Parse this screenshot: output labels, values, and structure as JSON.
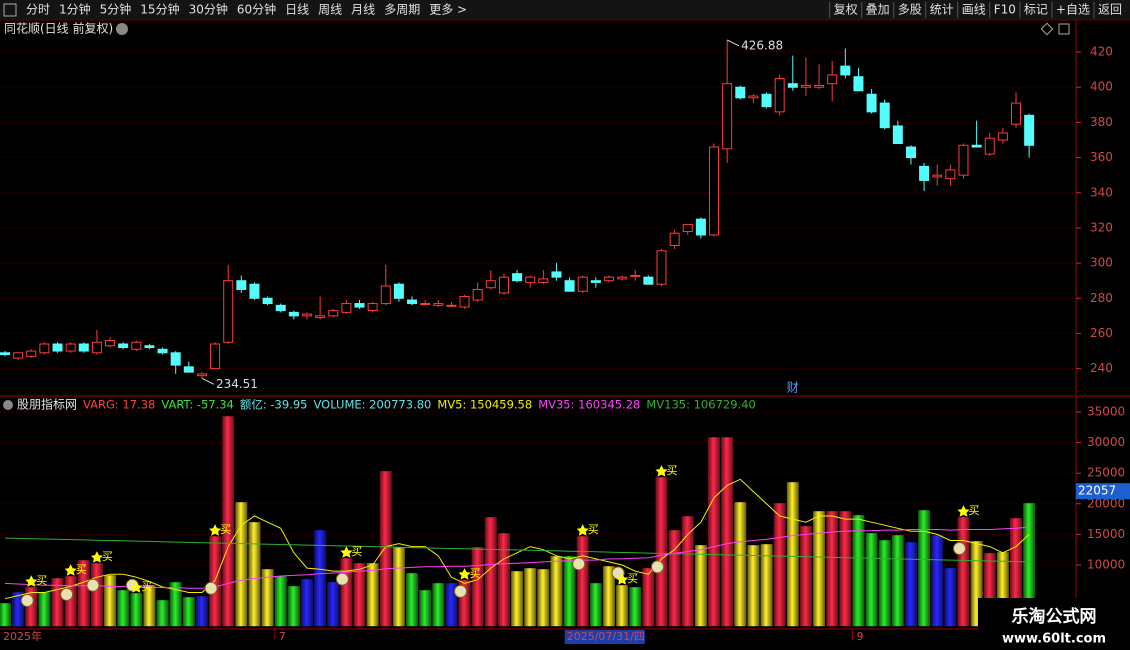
{
  "toolbar": {
    "left": [
      "分时",
      "1分钟",
      "5分钟",
      "15分钟",
      "30分钟",
      "60分钟",
      "日线",
      "周线",
      "月线",
      "多周期",
      "更多 >"
    ],
    "right": [
      "复权",
      "叠加",
      "多股",
      "统计",
      "画线",
      "F10",
      "标记",
      "+自选",
      "返回"
    ]
  },
  "chart_data": [
    {
      "type": "candlestick",
      "title": "同花顺(日线 前复权)",
      "categories": [
        "2025年",
        null,
        null,
        null,
        null,
        null,
        null,
        null,
        null,
        null,
        null,
        null,
        null,
        null,
        null,
        null,
        null,
        null,
        null,
        null,
        null,
        "7",
        null,
        null,
        null,
        null,
        null,
        null,
        null,
        null,
        null,
        null,
        null,
        null,
        null,
        null,
        null,
        null,
        null,
        null,
        null,
        null,
        null,
        null,
        "2025/07/31/四",
        null,
        null,
        null,
        null,
        null,
        null,
        null,
        null,
        null,
        null,
        null,
        null,
        null,
        null,
        null,
        null,
        null,
        null,
        null,
        null,
        "9",
        null,
        null,
        null,
        null,
        null,
        null,
        null,
        null,
        null,
        null,
        null,
        null,
        null
      ],
      "open": [
        249,
        246,
        247,
        249,
        254,
        250,
        254,
        249,
        253,
        254,
        251,
        253,
        251,
        249,
        241,
        236,
        240,
        255,
        290,
        288,
        280,
        276,
        272,
        270,
        269,
        270,
        272,
        277,
        273,
        277,
        288,
        279,
        277,
        276,
        276,
        275,
        279,
        286,
        283,
        294,
        289,
        289,
        295,
        290,
        284,
        290,
        290,
        291,
        293,
        292,
        288,
        310,
        318,
        325,
        316,
        365,
        400,
        394,
        396,
        386,
        402,
        400,
        400,
        402,
        412,
        406,
        396,
        391,
        378,
        366,
        355,
        349,
        348,
        350,
        367,
        362,
        370,
        379,
        384
      ],
      "high": [
        250,
        249,
        251,
        255,
        255,
        255,
        255,
        262,
        258,
        255,
        256,
        254,
        252,
        250,
        244,
        238,
        255,
        299,
        293,
        289,
        281,
        277,
        273,
        272,
        281,
        274,
        279,
        279,
        278,
        299,
        289,
        281,
        279,
        279,
        278,
        282,
        289,
        296,
        294,
        296,
        293,
        296,
        300,
        292,
        293,
        292,
        293,
        293,
        296,
        293,
        308,
        319,
        322,
        326,
        368,
        426.88,
        401,
        396,
        397,
        407,
        418,
        417,
        413,
        415,
        422,
        411,
        399,
        393,
        381,
        367,
        357,
        356,
        356,
        368,
        381,
        374,
        377,
        397,
        385
      ],
      "low": [
        247,
        245,
        246,
        248,
        249,
        249,
        249,
        248,
        252,
        251,
        250,
        251,
        248,
        237,
        238,
        234.51,
        240,
        254,
        283,
        279,
        276,
        272,
        268,
        268,
        268,
        269,
        271,
        274,
        272,
        276,
        278,
        276,
        276,
        275,
        275,
        274,
        278,
        285,
        282,
        289,
        286,
        288,
        290,
        284,
        283,
        286,
        289,
        290,
        290,
        288,
        287,
        308,
        316,
        314,
        315,
        357,
        393,
        391,
        388,
        384,
        398,
        395,
        399,
        392,
        405,
        398,
        385,
        376,
        368,
        356,
        341,
        344,
        344,
        348,
        366,
        361,
        368,
        377,
        360
      ],
      "close": [
        248,
        249,
        250,
        254,
        250,
        254,
        250,
        255,
        256,
        252,
        255,
        252,
        249,
        242,
        238,
        237,
        254,
        290,
        285,
        280,
        277,
        273,
        270,
        271,
        270,
        273,
        277,
        275,
        277,
        287,
        280,
        277,
        277,
        277,
        276,
        281,
        285,
        290,
        292,
        290,
        292,
        291,
        292,
        284,
        292,
        289,
        292,
        292,
        293,
        288,
        307,
        317,
        322,
        316,
        366,
        402,
        394,
        395,
        389,
        405,
        400,
        401,
        401,
        407,
        407,
        398,
        386,
        377,
        368,
        360,
        347,
        350,
        353,
        367,
        366,
        371,
        374,
        391,
        367
      ],
      "up_color": "#ff3a3a",
      "down_color": "#54fcfc",
      "ylim": [
        225,
        428
      ],
      "yticks": [
        240,
        260,
        280,
        300,
        320,
        340,
        360,
        380,
        400,
        420
      ],
      "marker_label": "财",
      "marker_index": 60
    },
    {
      "type": "bar",
      "title": "股朋指标网",
      "legend": [
        {
          "text": "VARG: 17.38",
          "color": "#ff4040"
        },
        {
          "text": "VART: -57.34",
          "color": "#40e040"
        },
        {
          "text": "额亿: -39.95",
          "color": "#60e0e0"
        },
        {
          "text": "VOLUME: 200773.80",
          "color": "#60e0e0"
        },
        {
          "text": "MV5: 150459.58",
          "color": "#f0f000"
        },
        {
          "text": "MV35: 160345.28",
          "color": "#ff40ff"
        },
        {
          "text": "MV135: 106729.40",
          "color": "#30b030"
        }
      ],
      "values": [
        3760,
        5560,
        6370,
        5560,
        7840,
        8170,
        10780,
        10290,
        8330,
        5880,
        5390,
        6700,
        4250,
        7190,
        4740,
        4900,
        14700,
        34300,
        20260,
        17000,
        9310,
        8170,
        6540,
        7680,
        15690,
        7190,
        11110,
        10290,
        10290,
        25330,
        12910,
        8660,
        5880,
        7030,
        7030,
        7520,
        12910,
        17810,
        15200,
        8990,
        9480,
        9310,
        11440,
        11440,
        14700,
        7030,
        9800,
        6700,
        6370,
        9480,
        24350,
        15690,
        17970,
        13240,
        30880,
        30880,
        20260,
        13240,
        13400,
        20100,
        23530,
        16340,
        18790,
        18790,
        18790,
        18140,
        15200,
        14050,
        14870,
        13730,
        18950,
        14870,
        9480,
        17810,
        13890,
        11930,
        12090,
        17650,
        20100
      ],
      "colors": [
        "#20c020",
        "#2020e0",
        "#e0203a",
        "#20c020",
        "#e0203a",
        "#e0203a",
        "#e0203a",
        "#e0203a",
        "#d4c020",
        "#20c020",
        "#20c020",
        "#d4c020",
        "#20c020",
        "#20c020",
        "#20c020",
        "#2020e0",
        "#e0203a",
        "#e0203a",
        "#d4c020",
        "#d4c020",
        "#d4c020",
        "#20c020",
        "#20c020",
        "#2020e0",
        "#2020e0",
        "#2020e0",
        "#e0203a",
        "#e0203a",
        "#d4c020",
        "#e0203a",
        "#d4c020",
        "#20c020",
        "#20c020",
        "#20c020",
        "#2020e0",
        "#e0203a",
        "#e0203a",
        "#e0203a",
        "#e0203a",
        "#d4c020",
        "#d4c020",
        "#d4c020",
        "#d4c020",
        "#20c020",
        "#e0203a",
        "#20c020",
        "#d4c020",
        "#d4c020",
        "#20c020",
        "#e0203a",
        "#e0203a",
        "#e0203a",
        "#e0203a",
        "#d4c020",
        "#e0203a",
        "#e0203a",
        "#d4c020",
        "#d4c020",
        "#d4c020",
        "#e0203a",
        "#d4c020",
        "#e0203a",
        "#d4c020",
        "#e0203a",
        "#e0203a",
        "#20c020",
        "#20c020",
        "#20c020",
        "#20c020",
        "#2020e0",
        "#20c020",
        "#2020e0",
        "#2020e0",
        "#e0203a",
        "#d4c020",
        "#e0203a",
        "#d4c020",
        "#e0203a",
        "#20c020"
      ],
      "lines": [
        {
          "color": "#f0f000",
          "values": [
            4500,
            5000,
            5500,
            5500,
            6000,
            6500,
            7200,
            8000,
            8500,
            8500,
            8000,
            7300,
            6400,
            6000,
            5500,
            5500,
            7500,
            13000,
            16500,
            18000,
            17000,
            16000,
            12000,
            9500,
            9300,
            9000,
            9000,
            9300,
            10000,
            13000,
            13500,
            13000,
            13000,
            11500,
            8000,
            7000,
            7600,
            9500,
            11000,
            12000,
            13000,
            12500,
            11500,
            11000,
            11500,
            11000,
            10500,
            10000,
            9000,
            8500,
            11000,
            12500,
            15000,
            17000,
            21000,
            23000,
            24000,
            22000,
            20000,
            18000,
            17500,
            17000,
            18000,
            18000,
            17500,
            17500,
            17000,
            16500,
            16000,
            15500,
            15500,
            15000,
            14000,
            14000,
            13500,
            13000,
            12000,
            13000,
            15000
          ]
        },
        {
          "color": "#ff40ff",
          "values": [
            7000,
            6900,
            6800,
            6700,
            6700,
            6600,
            6600,
            6600,
            6500,
            6500,
            6400,
            6400,
            6300,
            6300,
            6200,
            6200,
            6400,
            7000,
            7500,
            7800,
            8000,
            8200,
            8300,
            8400,
            8600,
            8700,
            8800,
            9000,
            9100,
            9400,
            9500,
            9600,
            9700,
            9700,
            9800,
            9800,
            9900,
            10100,
            10200,
            10300,
            10400,
            10500,
            10600,
            10700,
            10800,
            10800,
            11000,
            11000,
            11100,
            11200,
            11600,
            11900,
            12200,
            12500,
            13000,
            13500,
            13800,
            14000,
            14200,
            14500,
            14800,
            15000,
            15200,
            15400,
            15500,
            15600,
            15600,
            15700,
            15700,
            15800,
            15800,
            15800,
            15700,
            15800,
            15800,
            15800,
            15900,
            16000,
            16200
          ]
        },
        {
          "color": "#30b030",
          "values": [
            14400,
            14350,
            14300,
            14250,
            14200,
            14150,
            14100,
            14050,
            14000,
            13950,
            13900,
            13850,
            13800,
            13750,
            13700,
            13650,
            13600,
            13550,
            13500,
            13450,
            13400,
            13350,
            13300,
            13250,
            13200,
            13150,
            13100,
            13050,
            13000,
            12950,
            12900,
            12850,
            12800,
            12750,
            12700,
            12650,
            12600,
            12550,
            12500,
            12450,
            12400,
            12350,
            12300,
            12250,
            12200,
            12150,
            12100,
            12050,
            12000,
            11950,
            11900,
            11850,
            11800,
            11750,
            11700,
            11650,
            11600,
            11550,
            11500,
            11450,
            11400,
            11350,
            11300,
            11250,
            11200,
            11150,
            11100,
            11050,
            11000,
            10950,
            10900,
            10850,
            10800,
            10750,
            10700,
            10650,
            10600,
            10550,
            10500
          ]
        }
      ],
      "signal_label": "买",
      "signal_indices": [
        2,
        5,
        7,
        10,
        16,
        26,
        35,
        44,
        47,
        50,
        73
      ],
      "ylim": [
        0,
        37000
      ],
      "yticks": [
        10000,
        15000,
        20000,
        25000,
        30000,
        35000
      ],
      "cursor_value": 22057
    }
  ],
  "watermark": {
    "title": "乐淘公式网",
    "url": "www.60lt.com"
  }
}
